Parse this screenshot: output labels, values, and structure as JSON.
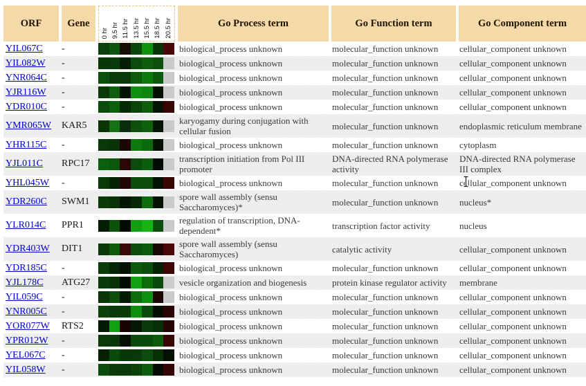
{
  "header": {
    "orf": "ORF",
    "gene": "Gene",
    "time_points": [
      "0 hr",
      "9.5 hr",
      "11.5 hr",
      "13.5 hr",
      "15.5 hr",
      "18.5 hr",
      "20.5 hr"
    ],
    "process": "Go Process term",
    "function": "Go Function term",
    "component": "Go Component term"
  },
  "colors": {
    "header_bg": "#f5dcab",
    "row_alt_bg": "#ededed",
    "link": "#0000cc",
    "body_text": "#3a3a3a",
    "missing_cell_gray": "#c9c9c9"
  },
  "rows": [
    {
      "orf": "YIL067C",
      "gene": "-",
      "heat": [
        "#0b3f0b",
        "#0d550d",
        "#171002",
        "#0b470b",
        "#0f930f",
        "#073407",
        "#4a0707"
      ],
      "process": "biological_process unknown",
      "function": "molecular_function unknown",
      "component": "cellular_component unknown"
    },
    {
      "orf": "YIL082W",
      "gene": "-",
      "heat": [
        "#083808",
        "#0a3a0a",
        "#051e05",
        "#0b4b0b",
        "#0d5d0d",
        "#0b4f0b",
        "#c9c9c9"
      ],
      "process": "biological_process unknown",
      "function": "molecular_function unknown",
      "component": "cellular_component unknown"
    },
    {
      "orf": "YNR064C",
      "gene": "-",
      "heat": [
        "#0c4f0c",
        "#0a3c0a",
        "#0a3a0a",
        "#0c5c0c",
        "#0e7a0e",
        "#0c5a0c",
        "#c9c9c9"
      ],
      "process": "biological_process unknown",
      "function": "molecular_function unknown",
      "component": "cellular_component unknown"
    },
    {
      "orf": "YJR116W",
      "gene": "-",
      "heat": [
        "#0a3a0a",
        "#0d5f0d",
        "#031403",
        "#0f8f0f",
        "#0e850e",
        "#021002",
        "#c9c9c9"
      ],
      "process": "biological_process unknown",
      "function": "molecular_function unknown",
      "component": "cellular_component unknown"
    },
    {
      "orf": "YDR010C",
      "gene": "-",
      "heat": [
        "#0b4b0b",
        "#0c600c",
        "#062a06",
        "#0a440a",
        "#0c5c0c",
        "#051505",
        "#3a0505"
      ],
      "process": "biological_process unknown",
      "function": "molecular_function unknown",
      "component": "cellular_component unknown"
    },
    {
      "orf": "YMR065W",
      "gene": "KAR5",
      "heat": [
        "#0a3505",
        "#167016",
        "#0b2d0b",
        "#0e4f0e",
        "#0d600d",
        "#051505",
        "#c9c9c9"
      ],
      "process": "karyogamy during conjugation with cellular fusion",
      "function": "molecular_function unknown",
      "component": "endoplasmic reticulum membrane"
    },
    {
      "orf": "YHR115C",
      "gene": "-",
      "heat": [
        "#093909",
        "#093409",
        "#1c0707",
        "#0e7a0e",
        "#0c6a0c",
        "#041204",
        "#c9c9c9"
      ],
      "process": "biological_process unknown",
      "function": "molecular_function unknown",
      "component": "cytoplasm"
    },
    {
      "orf": "YJL011C",
      "gene": "RPC17",
      "heat": [
        "#0c5f0c",
        "#0b570b",
        "#2b0808",
        "#0b4b0b",
        "#0c5e0c",
        "#030c03",
        "#c9c9c9"
      ],
      "process": "transcription initiation from Pol III promoter",
      "function": "DNA-directed RNA polymerase activity",
      "component": "DNA-directed RNA polymerase III complex"
    },
    {
      "orf": "YHL045W",
      "gene": "-",
      "heat": [
        "#0a3a0a",
        "#062206",
        "#200606",
        "#0b4e0b",
        "#0b4e0b",
        "#041404",
        "#3a0606"
      ],
      "process": "biological_process unknown",
      "function": "molecular_function unknown",
      "component": "cellular_component unknown"
    },
    {
      "orf": "YDR260C",
      "gene": "SWM1",
      "heat": [
        "#0a3c0a",
        "#093209",
        "#041604",
        "#062906",
        "#0d6d0d",
        "#031103",
        "#c9c9c9"
      ],
      "process": "spore wall assembly (sensu Saccharomyces)*",
      "function": "molecular_function unknown",
      "component": "nucleus*"
    },
    {
      "orf": "YLR014C",
      "gene": "PPR1",
      "heat": [
        "#051c05",
        "#0b530b",
        "#020c02",
        "#0f9f0f",
        "#14b414",
        "#0b4d0b",
        "#c9c9c9"
      ],
      "process": "regulation of transcription, DNA-dependent*",
      "function": "transcription factor activity",
      "component": "nucleus"
    },
    {
      "orf": "YDR403W",
      "gene": "DIT1",
      "heat": [
        "#0a3a0a",
        "#0c5c0c",
        "#3a0a0a",
        "#0b4d0b",
        "#0c5a0c",
        "#1c0505",
        "#4a0808"
      ],
      "process": "spore wall assembly (sensu Saccharomyces)",
      "function": "catalytic activity",
      "component": "cellular_component unknown"
    },
    {
      "orf": "YDR185C",
      "gene": "-",
      "heat": [
        "#0b3d0b",
        "#062406",
        "#041204",
        "#0d5a0d",
        "#0b4d0b",
        "#052105",
        "#3f0606"
      ],
      "process": "biological_process unknown",
      "function": "molecular_function unknown",
      "component": "cellular_component unknown"
    },
    {
      "orf": "YJL178C",
      "gene": "ATG27",
      "heat": [
        "#0a3a0a",
        "#093209",
        "#020c02",
        "#12a012",
        "#0c6c0c",
        "#0a4a0a",
        "#cccccc"
      ],
      "process": "vesicle organization and biogenesis",
      "function": "protein kinase regulator activity",
      "component": "membrane"
    },
    {
      "orf": "YIL059C",
      "gene": "-",
      "heat": [
        "#093509",
        "#0b4f0b",
        "#051a05",
        "#0d6d0d",
        "#0f8f0f",
        "#1c0505",
        "#c9c9c9"
      ],
      "process": "biological_process unknown",
      "function": "molecular_function unknown",
      "component": "cellular_component unknown"
    },
    {
      "orf": "YNR005C",
      "gene": "-",
      "heat": [
        "#0a420a",
        "#0a3a0a",
        "#0a3c0a",
        "#0e8e0e",
        "#0a4a0a",
        "#030f03",
        "#2a0505"
      ],
      "process": "biological_process unknown",
      "function": "molecular_function unknown",
      "component": "cellular_component unknown"
    },
    {
      "orf": "YOR077W",
      "gene": "RTS2",
      "heat": [
        "#051a05",
        "#12a012",
        "#190404",
        "#041804",
        "#0a3a0a",
        "#083008",
        "#250505"
      ],
      "process": "biological_process unknown",
      "function": "molecular_function unknown",
      "component": "cellular_component unknown"
    },
    {
      "orf": "YPR012W",
      "gene": "-",
      "heat": [
        "#0a3a0a",
        "#093709",
        "#041004",
        "#0a4a0a",
        "#0a4a0a",
        "#0c5c0c",
        "#3a0505"
      ],
      "process": "biological_process unknown",
      "function": "molecular_function unknown",
      "component": "cellular_component unknown"
    },
    {
      "orf": "YEL067C",
      "gene": "-",
      "heat": [
        "#062006",
        "#0a4a0a",
        "#083808",
        "#093909",
        "#0b4b0b",
        "#073007",
        "#051005"
      ],
      "process": "biological_process unknown",
      "function": "molecular_function unknown",
      "component": "cellular_component unknown"
    },
    {
      "orf": "YIL058W",
      "gene": "-",
      "heat": [
        "#0c4c0c",
        "#0a3a0a",
        "#093909",
        "#0a420a",
        "#0d5d0d",
        "#030c03",
        "#330505"
      ],
      "process": "biological_process unknown",
      "function": "molecular_function unknown",
      "component": "cellular_component unknown"
    }
  ]
}
